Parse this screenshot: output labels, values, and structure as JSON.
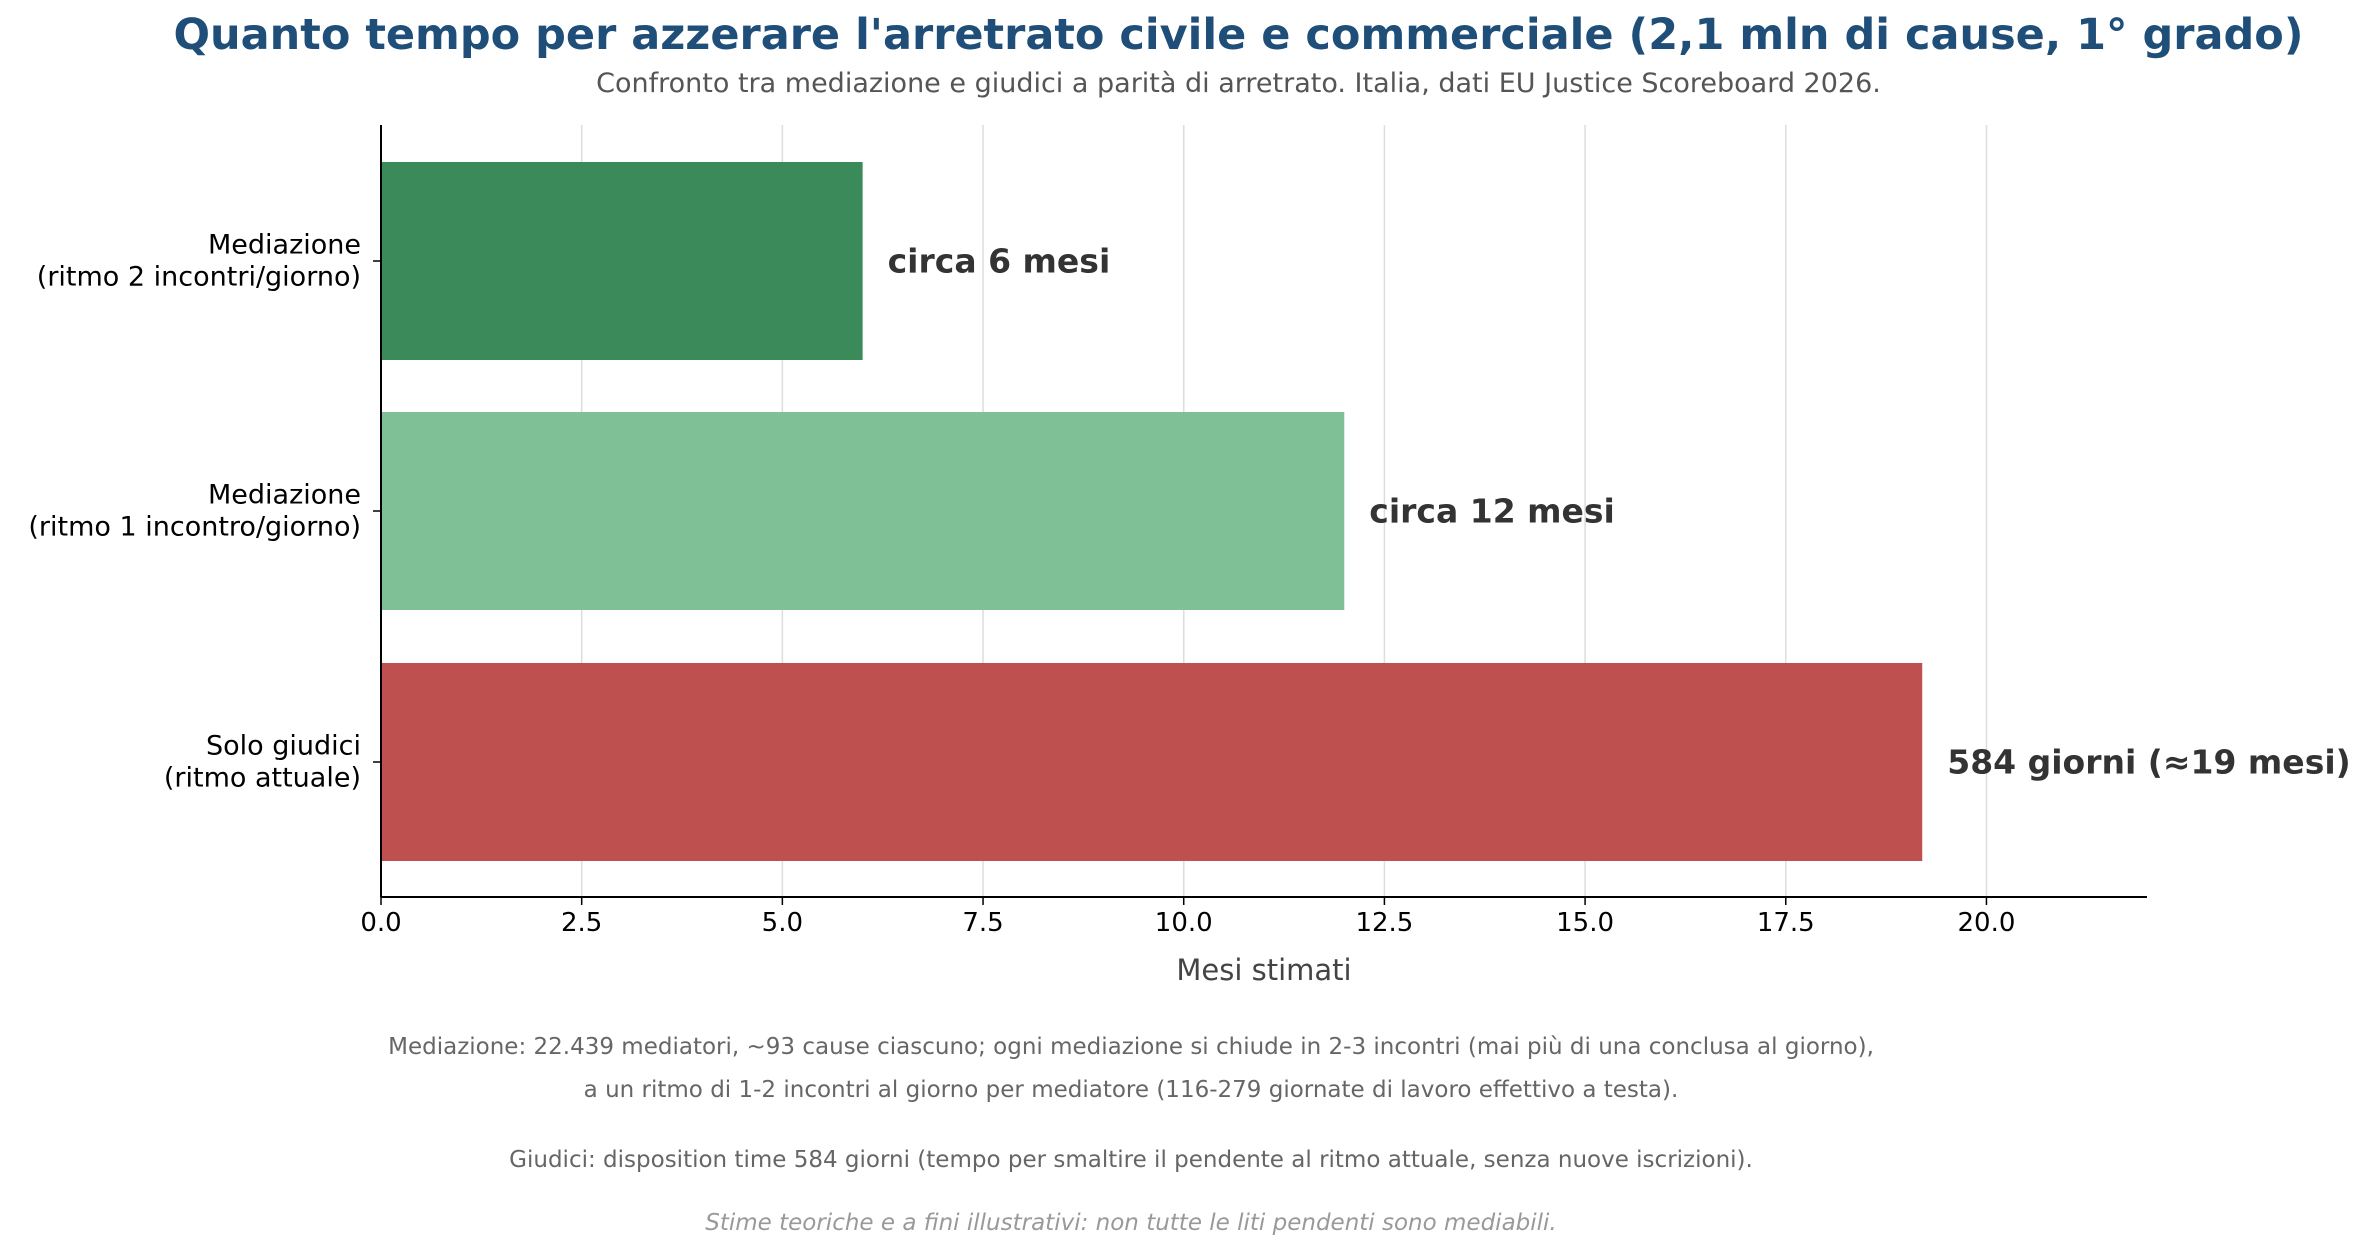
{
  "chart_data": {
    "type": "bar",
    "orientation": "horizontal",
    "title": "Quanto tempo per azzerare l'arretrato civile e commerciale (2,1 mln di cause, 1° grado)",
    "subtitle": "Confronto tra mediazione e giudici a parità di arretrato. Italia, dati EU Justice Scoreboard 2026.",
    "xlabel": "Mesi stimati",
    "ylabel": "",
    "xlim": [
      0,
      22
    ],
    "x_ticks": [
      "0.0",
      "2.5",
      "5.0",
      "7.5",
      "10.0",
      "12.5",
      "15.0",
      "17.5",
      "20.0"
    ],
    "x_tick_values": [
      0,
      2.5,
      5,
      7.5,
      10,
      12.5,
      15,
      17.5,
      20
    ],
    "grid": "vertical",
    "bars": [
      {
        "label_lines": [
          "Mediazione",
          "(ritmo 2 incontri/giorno)"
        ],
        "value": 6,
        "data_label": "circa 6 mesi",
        "color": "#3b8b5a"
      },
      {
        "label_lines": [
          "Mediazione",
          "(ritmo 1 incontro/giorno)"
        ],
        "value": 12,
        "data_label": "circa 12 mesi",
        "color": "#80c096"
      },
      {
        "label_lines": [
          "Solo giudici",
          "(ritmo attuale)"
        ],
        "value": 19.2,
        "data_label": "584 giorni (≈19 mesi)",
        "color": "#be5150"
      }
    ]
  },
  "notes": {
    "line1": "Mediazione: 22.439 mediatori, ~93 cause ciascuno; ogni mediazione si chiude in 2-3 incontri (mai più di una conclusa al giorno),",
    "line2": "a un ritmo di 1-2 incontri al giorno per mediatore (116-279 giornate di lavoro effettivo a testa).",
    "line3": "Giudici: disposition time 584 giorni (tempo per smaltire il pendente al ritmo attuale, senza nuove iscrizioni).",
    "line4": "Stime teoriche e a fini illustrativi: non tutte le liti pendenti sono mediabili."
  },
  "colors": {
    "title": "#1f4e79",
    "subtitle": "#555555",
    "data_label": "#333333",
    "grid": "#dddddd",
    "axis": "#000000"
  }
}
